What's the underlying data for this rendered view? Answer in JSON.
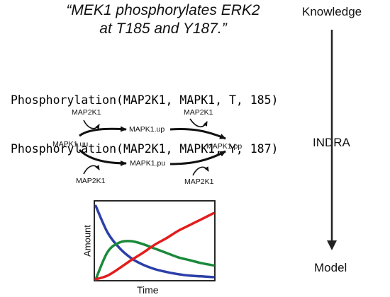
{
  "quote": {
    "line1": "“MEK1 phosphorylates ERK2",
    "line2": "at T185 and Y187.”"
  },
  "statements": [
    "Phosphorylation(MAP2K1, MAPK1, T, 185)",
    "Phosphorylation(MAP2K1, MAPK1, Y, 187)"
  ],
  "pipeline": {
    "top": "Knowledge",
    "middle": "INDRA",
    "bottom": "Model"
  },
  "network": {
    "species": {
      "uu": "MAPK1.uu",
      "up": "MAPK1.up",
      "pu": "MAPK1.pu",
      "pp": "MAPK1.pp"
    },
    "enzyme_labels": [
      "MAP2K1",
      "MAP2K1",
      "MAP2K1",
      "MAP2K1"
    ]
  },
  "chart": {
    "xlabel": "Time",
    "ylabel": "Amount",
    "series_colors": [
      "#2b3fa8",
      "#1a8a3a",
      "#e21d1d"
    ]
  },
  "chart_data": {
    "type": "line",
    "xlabel": "Time",
    "ylabel": "Amount",
    "grid": false,
    "legend": "none",
    "x": [
      0,
      0.1,
      0.2,
      0.3,
      0.4,
      0.5,
      0.6,
      0.7,
      0.8,
      0.9,
      1.0
    ],
    "series": [
      {
        "color": "#2b3fa8",
        "values": [
          1.0,
          0.64,
          0.43,
          0.29,
          0.2,
          0.14,
          0.1,
          0.07,
          0.05,
          0.04,
          0.03
        ]
      },
      {
        "color": "#1a8a3a",
        "values": [
          0.0,
          0.37,
          0.5,
          0.52,
          0.48,
          0.42,
          0.36,
          0.3,
          0.26,
          0.22,
          0.19
        ]
      },
      {
        "color": "#e21d1d",
        "values": [
          0.0,
          0.05,
          0.15,
          0.26,
          0.36,
          0.47,
          0.56,
          0.66,
          0.74,
          0.82,
          0.9
        ]
      }
    ],
    "xlim": [
      0,
      1
    ],
    "ylim": [
      0,
      1.05
    ]
  }
}
